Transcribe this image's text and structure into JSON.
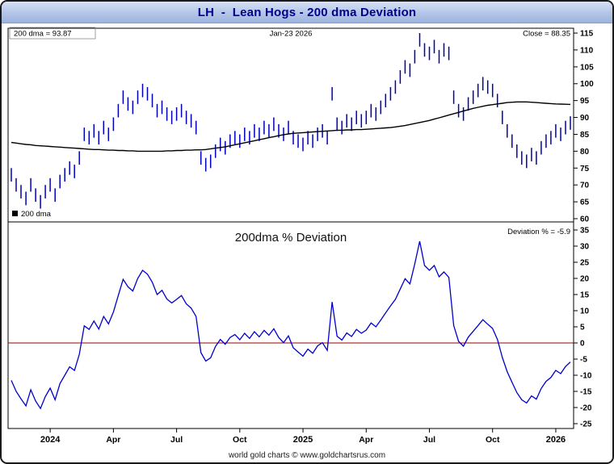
{
  "window": {
    "title": "LH  -  Lean Hogs - 200 dma Deviation",
    "footer": "world gold charts © www.goldchartsrus.com"
  },
  "colors": {
    "price_bars": "#0000bb",
    "dma_line": "#000000",
    "deviation_line": "#0000cc",
    "zero_line": "#990000",
    "title_text": "#00008b",
    "panel_border": "#000000"
  },
  "x_axis": {
    "ticks": [
      {
        "index": 8,
        "label": "2024",
        "bold": true
      },
      {
        "index": 21,
        "label": "Apr",
        "bold": false
      },
      {
        "index": 34,
        "label": "Jul",
        "bold": false
      },
      {
        "index": 47,
        "label": "Oct",
        "bold": false
      },
      {
        "index": 60,
        "label": "2025",
        "bold": true
      },
      {
        "index": 73,
        "label": "Apr",
        "bold": false
      },
      {
        "index": 86,
        "label": "Jul",
        "bold": false
      },
      {
        "index": 99,
        "label": "Oct",
        "bold": false
      },
      {
        "index": 112,
        "label": "2026",
        "bold": true
      }
    ],
    "range_note": "weekly samples, Nov 2023 through Jan-23 2026"
  },
  "chart_data": [
    {
      "name": "price-panel",
      "type": "bar",
      "title": "",
      "ylim": [
        60,
        115
      ],
      "yticks": [
        60,
        65,
        70,
        75,
        80,
        85,
        90,
        95,
        100,
        105,
        110,
        115
      ],
      "y_axis_side": "right",
      "grid": false,
      "annotations": {
        "dma_label": "200 dma =  93.87",
        "date_label": "Jan-23  2026",
        "close_label": "Close = 88.35",
        "legend_label": "200 dma"
      },
      "series": [
        {
          "name": "LH price bars",
          "style": "ohlc-bars",
          "color": "#0000bb",
          "bar_half_range": 2,
          "values": [
            73,
            70,
            68,
            66,
            70,
            67,
            65,
            68,
            70,
            67,
            71,
            73,
            75,
            74,
            78,
            85,
            84,
            86,
            84,
            87,
            85,
            88,
            92,
            96,
            94,
            93,
            96,
            98,
            97,
            95,
            92,
            93,
            91,
            90,
            91,
            92,
            90,
            89,
            87,
            78,
            76,
            77,
            80,
            82,
            81,
            83,
            84,
            83,
            85,
            84,
            86,
            85,
            87,
            86,
            88,
            86,
            85,
            87,
            84,
            83,
            82,
            84,
            83,
            85,
            86,
            84,
            97,
            88,
            87,
            89,
            88,
            90,
            89,
            90,
            92,
            91,
            93,
            95,
            97,
            99,
            102,
            105,
            104,
            108,
            113,
            110,
            109,
            111,
            108,
            110,
            109,
            96,
            92,
            91,
            94,
            96,
            98,
            100,
            99,
            98,
            95,
            90,
            86,
            83,
            80,
            78,
            77,
            79,
            78,
            81,
            83,
            84,
            86,
            85,
            87,
            88.35
          ]
        },
        {
          "name": "200 dma",
          "style": "line",
          "color": "#000000",
          "values": [
            82.6,
            82.4,
            82.2,
            82.0,
            81.9,
            81.7,
            81.6,
            81.5,
            81.4,
            81.3,
            81.2,
            81.1,
            81.0,
            80.9,
            80.8,
            80.7,
            80.6,
            80.5,
            80.5,
            80.4,
            80.3,
            80.3,
            80.2,
            80.2,
            80.1,
            80.1,
            80.0,
            80.0,
            80.0,
            80.0,
            80.0,
            80.0,
            80.1,
            80.1,
            80.2,
            80.2,
            80.3,
            80.3,
            80.4,
            80.4,
            80.5,
            80.7,
            80.9,
            81.1,
            81.3,
            81.6,
            81.9,
            82.2,
            82.5,
            82.8,
            83.1,
            83.4,
            83.7,
            84.0,
            84.3,
            84.6,
            84.9,
            85.1,
            85.3,
            85.4,
            85.5,
            85.6,
            85.7,
            85.8,
            85.9,
            86.0,
            86.1,
            86.2,
            86.2,
            86.3,
            86.3,
            86.4,
            86.4,
            86.5,
            86.6,
            86.7,
            86.8,
            86.9,
            87.0,
            87.2,
            87.4,
            87.6,
            87.9,
            88.2,
            88.5,
            88.8,
            89.1,
            89.5,
            89.9,
            90.3,
            90.7,
            91.1,
            91.5,
            91.9,
            92.3,
            92.7,
            93.0,
            93.3,
            93.6,
            93.8,
            94.0,
            94.2,
            94.4,
            94.5,
            94.6,
            94.6,
            94.6,
            94.5,
            94.4,
            94.3,
            94.2,
            94.1,
            94.0,
            93.95,
            93.9,
            93.87
          ]
        }
      ]
    },
    {
      "name": "deviation-panel",
      "type": "line",
      "title": "200dma  %  Deviation",
      "annotation": "Deviation % = -5.9",
      "ylim": [
        -25,
        35
      ],
      "yticks": [
        -25,
        -20,
        -15,
        -10,
        -5,
        0,
        5,
        10,
        15,
        20,
        25,
        30,
        35
      ],
      "y_axis_side": "right",
      "grid": false,
      "zero_line_color": "#990000",
      "series": [
        {
          "name": "200dma % deviation",
          "style": "line",
          "color": "#0000cc",
          "values": [
            -11.6,
            -15.0,
            -17.3,
            -19.5,
            -14.5,
            -18.0,
            -20.3,
            -16.6,
            -14.0,
            -17.6,
            -12.6,
            -10.0,
            -7.4,
            -8.5,
            -3.5,
            5.3,
            4.2,
            6.8,
            4.3,
            8.2,
            5.9,
            9.6,
            14.7,
            19.7,
            17.4,
            16.1,
            20.0,
            22.5,
            21.3,
            18.8,
            15.0,
            16.3,
            13.6,
            12.4,
            13.5,
            14.7,
            12.1,
            10.8,
            8.2,
            -3.0,
            -5.6,
            -4.6,
            -1.1,
            1.1,
            -0.4,
            1.7,
            2.6,
            1.0,
            3.0,
            1.4,
            3.5,
            1.9,
            3.9,
            2.4,
            4.4,
            1.7,
            0.1,
            2.2,
            -1.5,
            -2.8,
            -4.1,
            -1.9,
            -3.2,
            -0.9,
            0.1,
            -2.3,
            12.7,
            2.1,
            0.9,
            3.1,
            2.0,
            4.2,
            3.0,
            4.0,
            6.2,
            5.0,
            7.1,
            9.3,
            11.5,
            13.5,
            16.7,
            19.9,
            18.3,
            24.5,
            31.5,
            24.0,
            22.5,
            24.0,
            20.5,
            22.0,
            20.3,
            5.4,
            0.5,
            -1.0,
            1.8,
            3.6,
            5.4,
            7.2,
            5.8,
            4.5,
            1.1,
            -4.5,
            -8.9,
            -12.2,
            -15.4,
            -17.6,
            -18.6,
            -16.4,
            -17.4,
            -14.1,
            -11.9,
            -10.7,
            -8.5,
            -9.5,
            -7.3,
            -5.9
          ]
        }
      ]
    }
  ]
}
